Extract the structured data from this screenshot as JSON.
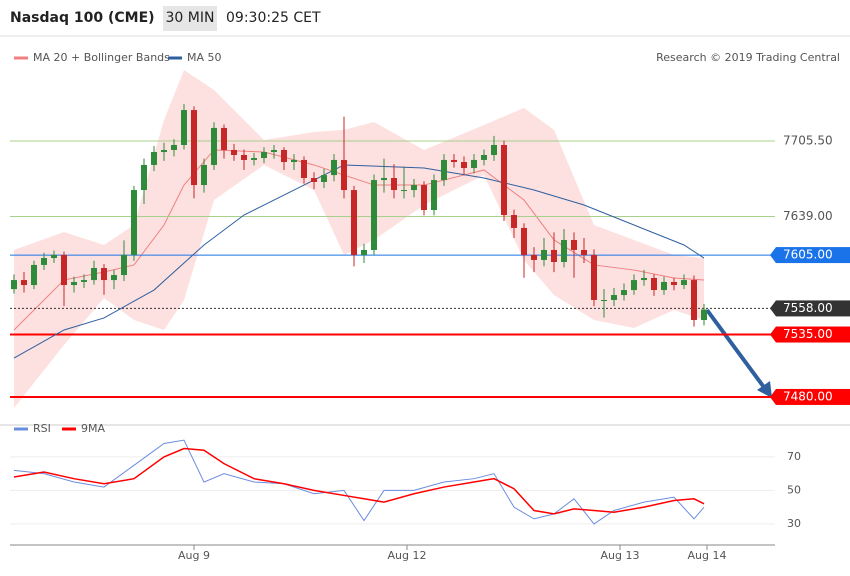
{
  "chart_data": {
    "type": "candlestick",
    "title": "Nasdaq 100 (CME)",
    "interval": "30 MIN",
    "time": "09:30:25 CET",
    "credit": "Research © 2019 Trading Central",
    "xlim": [
      -0.4,
      76.1
    ],
    "ylim": [
      7468.5,
      7794.5
    ],
    "xticks": [
      {
        "value": 18,
        "label": "Aug 9"
      },
      {
        "value": 39.3,
        "label": "Aug 12"
      },
      {
        "value": 60.6,
        "label": "Aug 13"
      },
      {
        "value": 69.3,
        "label": "Aug 14"
      }
    ],
    "up_color": "#2e8b3a",
    "down_color": "#c62828",
    "open": [
      7575,
      7583,
      7578.6,
      7596.3,
      7602.4,
      7605.1,
      7578.6,
      7581.3,
      7583,
      7593.6,
      7583,
      7587.4,
      7605.1,
      7662.3,
      7684.4,
      7695.8,
      7697.6,
      7702,
      7732.8,
      7666.7,
      7684.4,
      7717,
      7697.6,
      7693.2,
      7688.8,
      7690.5,
      7695.8,
      7697.6,
      7687,
      7688.8,
      7672.9,
      7669.4,
      7675.5,
      7688.8,
      7662.3,
      7605.1,
      7609.5,
      7671.1,
      7672.9,
      7662.3,
      7662.3,
      7666.7,
      7644.7,
      7671.1,
      7688.8,
      7687,
      7681.7,
      7688.8,
      7693.2,
      7702,
      7640.3,
      7628.9,
      7605.1,
      7600.7,
      7609.5,
      7598.9,
      7618.3,
      7609.5,
      7605.1,
      7565.4,
      7565.4,
      7569.8,
      7574.2,
      7583,
      7584.8,
      7574.2,
      7581.3,
      7578.6,
      7583,
      7547.8
    ],
    "high": [
      7588,
      7590,
      7600,
      7607,
      7609,
      7608,
      7586,
      7588,
      7600,
      7597,
      7592,
      7618,
      7666,
      7690,
      7701,
      7704,
      7707,
      7738,
      7736,
      7690,
      7722,
      7720,
      7703,
      7698,
      7695,
      7700,
      7702,
      7700,
      7694,
      7692,
      7678,
      7681,
      7694,
      7727,
      7666,
      7615,
      7676,
      7690,
      7685,
      7683,
      7672,
      7670,
      7676,
      7694,
      7694,
      7692,
      7694,
      7698,
      7710,
      7706,
      7645,
      7633,
      7612,
      7620,
      7625,
      7628,
      7625,
      7620,
      7610,
      7575,
      7576,
      7580,
      7588,
      7592,
      7588,
      7586,
      7585,
      7588,
      7587,
      7562
    ],
    "low": [
      7571,
      7572,
      7575,
      7592,
      7598,
      7560,
      7572,
      7576,
      7579,
      7570,
      7575,
      7582,
      7600,
      7650,
      7679,
      7688,
      7692,
      7698,
      7655,
      7660,
      7680,
      7690,
      7688,
      7680,
      7684,
      7686,
      7690,
      7680,
      7680,
      7668,
      7663,
      7664,
      7670,
      7655,
      7595,
      7598,
      7605,
      7660,
      7655,
      7655,
      7656,
      7640,
      7640,
      7666,
      7682,
      7676,
      7677,
      7684,
      7688,
      7635,
      7620,
      7585,
      7590,
      7595,
      7590,
      7594,
      7585,
      7598,
      7560,
      7550,
      7560,
      7565,
      7570,
      7578,
      7569,
      7570,
      7574,
      7575,
      7542,
      7543
    ],
    "close": [
      7583,
      7578.6,
      7596.3,
      7602.4,
      7605.1,
      7578.6,
      7581.3,
      7583,
      7593.6,
      7583,
      7587.4,
      7605.1,
      7662.3,
      7684.4,
      7695.8,
      7697.6,
      7702,
      7732.8,
      7666.7,
      7684.4,
      7717,
      7697.6,
      7693.2,
      7688.8,
      7690.5,
      7695.8,
      7697.6,
      7687,
      7688.8,
      7672.9,
      7669.4,
      7675.5,
      7688.8,
      7662.3,
      7605.1,
      7609.5,
      7671.1,
      7672.9,
      7662.3,
      7662.3,
      7666.7,
      7644.7,
      7671.1,
      7688.8,
      7687,
      7681.7,
      7688.8,
      7693.2,
      7702,
      7640.3,
      7628.9,
      7605.1,
      7600.7,
      7609.5,
      7598.9,
      7618.3,
      7609.5,
      7605.1,
      7565.4,
      7565.4,
      7569.8,
      7574.2,
      7583,
      7584.8,
      7574.2,
      7581.3,
      7578.6,
      7583,
      7547.8,
      7557
    ],
    "bollinger": {
      "name": "MA 20 + Bollinger Bands",
      "color": "#f08080",
      "band_color": "#fde0e0",
      "x": [
        0,
        5,
        9,
        12,
        15,
        17,
        20,
        25,
        30,
        33,
        36,
        41,
        47,
        51,
        54,
        58,
        62,
        66,
        69
      ],
      "upper": [
        7609.5,
        7625.3,
        7613.9,
        7631.5,
        7724.0,
        7768.1,
        7750.5,
        7706.4,
        7713.4,
        7715.3,
        7722.2,
        7697.6,
        7719.6,
        7734.6,
        7715.3,
        7631.5,
        7618.3,
        7605.1,
        7602.4
      ],
      "middle": [
        7539.0,
        7583.0,
        7590.1,
        7596.3,
        7631.5,
        7666.7,
        7697.6,
        7695.8,
        7684.4,
        7675.5,
        7666.7,
        7666.7,
        7680.0,
        7653.5,
        7618.3,
        7596.3,
        7591.8,
        7584.8,
        7583.0
      ],
      "lower": [
        7470.3,
        7525.8,
        7567.2,
        7547.8,
        7539.0,
        7565.4,
        7653.5,
        7684.4,
        7662.3,
        7605.1,
        7618.3,
        7649.1,
        7675.5,
        7600.7,
        7569.8,
        7547.8,
        7540.8,
        7556.6,
        7547.8
      ]
    },
    "ma50": {
      "name": "MA 50",
      "color": "#2f5f9e",
      "x": [
        0,
        5,
        9,
        14,
        19,
        23,
        28,
        33,
        41,
        47,
        52,
        57,
        62,
        67,
        69
      ],
      "values": [
        7514.3,
        7539.0,
        7549.6,
        7574.2,
        7613.9,
        7640.3,
        7662.3,
        7684.4,
        7681.7,
        7672.9,
        7662.3,
        7649.1,
        7631.5,
        7613.9,
        7602.4
      ]
    },
    "levels": [
      {
        "value": 7705.5,
        "label": "7705.50",
        "color": "#a8d08d",
        "boxed": false
      },
      {
        "value": 7639,
        "label": "7639.00",
        "color": "#a8d08d",
        "boxed": false
      },
      {
        "value": 7605,
        "label": "7605.00",
        "color": "#1a73e8",
        "boxed": true
      },
      {
        "value": 7558,
        "label": "7558.00",
        "color": "#333333",
        "boxed": true
      },
      {
        "value": 7535,
        "label": "7535.00",
        "color": "#ff0000",
        "boxed": true
      },
      {
        "value": 7480,
        "label": "7480.00",
        "color": "#ff0000",
        "boxed": true
      }
    ],
    "rsi": {
      "ylim": [
        20.4,
        80.1
      ],
      "yticks": [
        30,
        50,
        70
      ],
      "x": [
        0,
        3,
        6,
        9,
        12,
        15,
        17,
        19,
        21,
        24,
        27,
        30,
        33,
        35,
        37,
        40,
        43,
        46,
        48,
        50,
        52,
        54,
        56,
        58,
        60,
        63,
        66,
        68,
        69
      ],
      "series": [
        {
          "name": "RSI",
          "color": "#6b8cdf",
          "values": [
            62,
            60,
            55,
            52,
            65,
            78,
            80,
            55,
            60,
            55,
            54,
            48,
            50,
            32,
            50,
            50,
            55,
            57,
            60,
            40,
            33,
            36,
            45,
            30,
            38,
            43,
            46,
            33,
            40
          ]
        },
        {
          "name": "9MA",
          "color": "#ff0000",
          "values": [
            58,
            61,
            57,
            54,
            57,
            70,
            75,
            74,
            66,
            57,
            54,
            50,
            47,
            45,
            43,
            48,
            52,
            55,
            57,
            51,
            38,
            36,
            39,
            38,
            37,
            40,
            44,
            45,
            42
          ]
        }
      ]
    }
  }
}
